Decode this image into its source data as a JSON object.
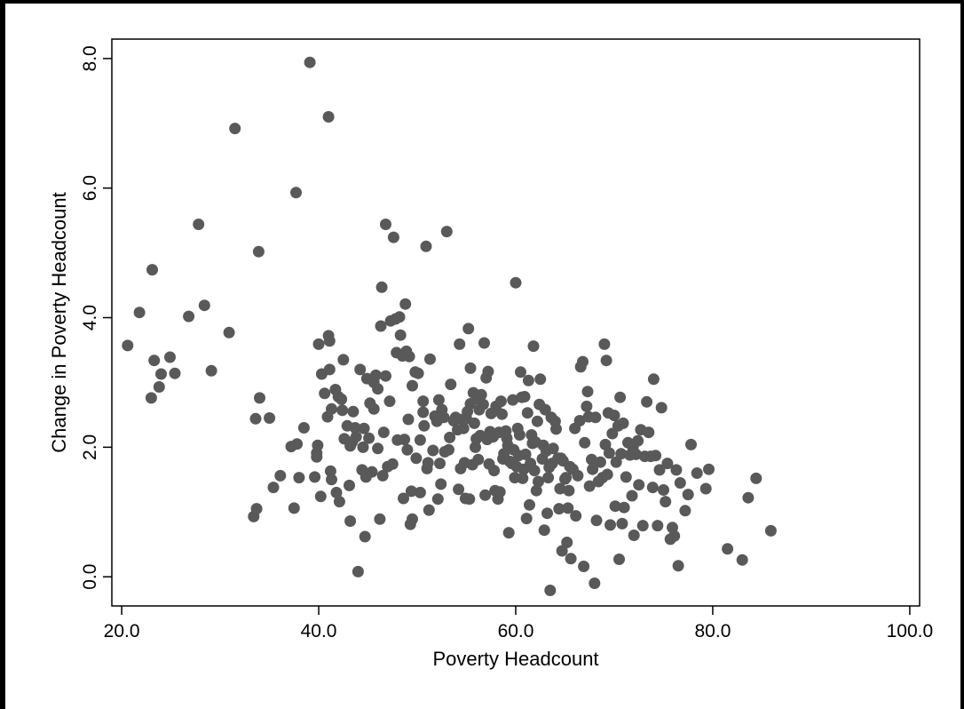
{
  "caption": "",
  "chart_data": {
    "type": "scatter",
    "title": "",
    "xlabel": "Poverty Headcount",
    "ylabel": "Change in Poverty Headcount",
    "xlim": [
      19.0,
      101.0
    ],
    "ylim": [
      -0.45,
      8.3
    ],
    "x_ticks": [
      20.0,
      40.0,
      60.0,
      80.0,
      100.0
    ],
    "x_tick_labels": [
      "20.0",
      "40.0",
      "60.0",
      "80.0",
      "100.0"
    ],
    "y_ticks": [
      0.0,
      2.0,
      4.0,
      6.0,
      8.0
    ],
    "y_tick_labels": [
      "0.0",
      "2.0",
      "4.0",
      "6.0",
      "8.0"
    ],
    "grid": false,
    "legend": "none",
    "marker_color": "#595959",
    "points": [
      [
        20.6,
        3.57
      ],
      [
        21.8,
        4.08
      ],
      [
        23.0,
        2.76
      ],
      [
        23.1,
        4.74
      ],
      [
        23.3,
        3.34
      ],
      [
        23.8,
        2.93
      ],
      [
        24.0,
        3.13
      ],
      [
        24.9,
        3.39
      ],
      [
        25.4,
        3.14
      ],
      [
        26.8,
        4.02
      ],
      [
        27.8,
        5.44
      ],
      [
        28.4,
        4.19
      ],
      [
        29.1,
        3.18
      ],
      [
        30.9,
        3.77
      ],
      [
        31.5,
        6.92
      ],
      [
        33.4,
        0.93
      ],
      [
        33.6,
        2.44
      ],
      [
        33.7,
        1.05
      ],
      [
        33.9,
        5.02
      ],
      [
        34.0,
        2.76
      ],
      [
        35.0,
        2.45
      ],
      [
        35.4,
        1.38
      ],
      [
        36.1,
        1.56
      ],
      [
        37.2,
        2.01
      ],
      [
        37.5,
        1.06
      ],
      [
        37.7,
        5.93
      ],
      [
        37.8,
        2.05
      ],
      [
        38.0,
        1.53
      ],
      [
        38.5,
        2.3
      ],
      [
        39.1,
        7.94
      ],
      [
        39.6,
        1.54
      ],
      [
        39.8,
        1.85
      ],
      [
        39.8,
        1.91
      ],
      [
        39.9,
        2.03
      ],
      [
        40.0,
        3.59
      ],
      [
        40.2,
        1.24
      ],
      [
        40.3,
        3.13
      ],
      [
        40.6,
        2.83
      ],
      [
        40.9,
        2.47
      ],
      [
        41.0,
        3.72
      ],
      [
        41.0,
        7.1
      ],
      [
        41.1,
        3.64
      ],
      [
        41.1,
        3.2
      ],
      [
        41.2,
        1.63
      ],
      [
        41.3,
        1.5
      ],
      [
        41.3,
        2.59
      ],
      [
        41.7,
        2.89
      ],
      [
        41.8,
        1.3
      ],
      [
        42.0,
        2.78
      ],
      [
        42.1,
        1.16
      ],
      [
        42.3,
        2.74
      ],
      [
        42.4,
        2.57
      ],
      [
        42.5,
        3.35
      ],
      [
        42.6,
        2.13
      ],
      [
        42.9,
        2.33
      ],
      [
        43.1,
        1.41
      ],
      [
        43.2,
        0.86
      ],
      [
        43.2,
        2.02
      ],
      [
        43.4,
        2.08
      ],
      [
        43.5,
        2.55
      ],
      [
        43.7,
        2.3
      ],
      [
        43.8,
        2.16
      ],
      [
        44.0,
        0.08
      ],
      [
        44.2,
        3.2
      ],
      [
        44.4,
        1.65
      ],
      [
        44.5,
        2.0
      ],
      [
        44.6,
        2.29
      ],
      [
        44.7,
        0.62
      ],
      [
        44.8,
        1.54
      ],
      [
        44.9,
        3.06
      ],
      [
        45.1,
        2.14
      ],
      [
        45.2,
        2.68
      ],
      [
        45.4,
        1.62
      ],
      [
        45.6,
        2.59
      ],
      [
        45.6,
        3.0
      ],
      [
        45.8,
        3.11
      ],
      [
        46.0,
        2.9
      ],
      [
        46.0,
        1.98
      ],
      [
        46.2,
        0.89
      ],
      [
        46.3,
        3.87
      ],
      [
        46.4,
        4.47
      ],
      [
        46.5,
        1.56
      ],
      [
        46.6,
        2.23
      ],
      [
        46.8,
        5.44
      ],
      [
        46.8,
        3.1
      ],
      [
        47.0,
        1.7
      ],
      [
        47.2,
        2.71
      ],
      [
        47.3,
        3.95
      ],
      [
        47.5,
        1.74
      ],
      [
        47.6,
        5.24
      ],
      [
        47.8,
        3.98
      ],
      [
        47.9,
        3.46
      ],
      [
        48.0,
        2.11
      ],
      [
        48.2,
        4.01
      ],
      [
        48.3,
        3.73
      ],
      [
        48.5,
        3.41
      ],
      [
        48.6,
        1.21
      ],
      [
        48.7,
        2.12
      ],
      [
        48.8,
        4.21
      ],
      [
        48.9,
        3.48
      ],
      [
        49.0,
        1.96
      ],
      [
        49.1,
        2.43
      ],
      [
        49.2,
        3.4
      ],
      [
        49.3,
        0.81
      ],
      [
        49.4,
        1.32
      ],
      [
        49.5,
        0.89
      ],
      [
        49.5,
        2.95
      ],
      [
        49.8,
        3.16
      ],
      [
        49.9,
        1.83
      ],
      [
        50.1,
        3.14
      ],
      [
        50.3,
        2.11
      ],
      [
        50.3,
        1.3
      ],
      [
        50.6,
        2.71
      ],
      [
        50.6,
        2.54
      ],
      [
        50.7,
        2.33
      ],
      [
        50.9,
        5.1
      ],
      [
        51.0,
        1.67
      ],
      [
        51.1,
        1.76
      ],
      [
        51.2,
        1.03
      ],
      [
        51.3,
        3.36
      ],
      [
        51.6,
        1.95
      ],
      [
        51.8,
        2.48
      ],
      [
        52.0,
        2.4
      ],
      [
        52.1,
        1.2
      ],
      [
        52.2,
        2.73
      ],
      [
        52.3,
        1.75
      ],
      [
        52.4,
        1.43
      ],
      [
        52.5,
        2.58
      ],
      [
        52.7,
        2.46
      ],
      [
        52.8,
        1.93
      ],
      [
        53.0,
        5.33
      ],
      [
        53.2,
        1.96
      ],
      [
        53.3,
        2.15
      ],
      [
        53.4,
        2.97
      ],
      [
        53.7,
        2.41
      ],
      [
        53.9,
        2.46
      ],
      [
        54.1,
        2.27
      ],
      [
        54.2,
        1.35
      ],
      [
        54.3,
        3.59
      ],
      [
        54.4,
        1.67
      ],
      [
        54.6,
        2.43
      ],
      [
        54.7,
        2.29
      ],
      [
        54.8,
        1.76
      ],
      [
        54.9,
        1.21
      ],
      [
        55.0,
        2.44
      ],
      [
        55.1,
        2.55
      ],
      [
        55.2,
        3.83
      ],
      [
        55.3,
        1.2
      ],
      [
        55.4,
        2.67
      ],
      [
        55.4,
        3.22
      ],
      [
        55.6,
        1.73
      ],
      [
        55.7,
        2.84
      ],
      [
        55.8,
        2.37
      ],
      [
        55.9,
        2.0
      ],
      [
        56.0,
        2.13
      ],
      [
        56.1,
        2.75
      ],
      [
        56.2,
        1.81
      ],
      [
        56.3,
        2.58
      ],
      [
        56.4,
        2.18
      ],
      [
        56.5,
        2.81
      ],
      [
        56.7,
        2.66
      ],
      [
        56.8,
        3.61
      ],
      [
        56.9,
        1.26
      ],
      [
        57.0,
        3.07
      ],
      [
        57.1,
        2.12
      ],
      [
        57.2,
        3.17
      ],
      [
        57.3,
        1.74
      ],
      [
        57.4,
        2.24
      ],
      [
        57.5,
        2.52
      ],
      [
        57.7,
        2.16
      ],
      [
        57.8,
        1.64
      ],
      [
        57.9,
        1.33
      ],
      [
        58.0,
        2.63
      ],
      [
        58.2,
        1.2
      ],
      [
        58.3,
        2.23
      ],
      [
        58.4,
        1.31
      ],
      [
        58.5,
        2.71
      ],
      [
        58.6,
        2.51
      ],
      [
        58.7,
        1.82
      ],
      [
        58.8,
        1.9
      ],
      [
        59.0,
        2.25
      ],
      [
        59.1,
        2.14
      ],
      [
        59.2,
        2.03
      ],
      [
        59.3,
        0.68
      ],
      [
        59.4,
        1.78
      ],
      [
        59.6,
        1.75
      ],
      [
        59.7,
        2.73
      ],
      [
        59.8,
        1.96
      ],
      [
        59.9,
        1.53
      ],
      [
        60.0,
        4.54
      ],
      [
        60.1,
        1.7
      ],
      [
        60.2,
        2.29
      ],
      [
        60.3,
        1.87
      ],
      [
        60.4,
        2.19
      ],
      [
        60.5,
        3.16
      ],
      [
        60.6,
        2.77
      ],
      [
        60.7,
        1.52
      ],
      [
        60.8,
        1.66
      ],
      [
        60.9,
        2.78
      ],
      [
        61.0,
        1.89
      ],
      [
        61.1,
        0.9
      ],
      [
        61.2,
        2.53
      ],
      [
        61.3,
        3.03
      ],
      [
        61.4,
        1.11
      ],
      [
        61.5,
        1.75
      ],
      [
        61.6,
        2.19
      ],
      [
        61.7,
        2.06
      ],
      [
        61.8,
        3.56
      ],
      [
        61.9,
        1.64
      ],
      [
        62.0,
        2.08
      ],
      [
        62.1,
        1.33
      ],
      [
        62.2,
        2.4
      ],
      [
        62.3,
        1.47
      ],
      [
        62.4,
        2.66
      ],
      [
        62.5,
        3.05
      ],
      [
        62.7,
        1.82
      ],
      [
        62.8,
        2.03
      ],
      [
        62.9,
        0.72
      ],
      [
        63.0,
        2.58
      ],
      [
        63.1,
        1.94
      ],
      [
        63.2,
        0.98
      ],
      [
        63.3,
        1.53
      ],
      [
        63.4,
        1.69
      ],
      [
        63.5,
        -0.21
      ],
      [
        63.6,
        2.46
      ],
      [
        63.7,
        1.75
      ],
      [
        63.8,
        1.98
      ],
      [
        64.0,
        2.4
      ],
      [
        64.1,
        2.28
      ],
      [
        64.3,
        1.83
      ],
      [
        64.4,
        1.05
      ],
      [
        64.5,
        1.36
      ],
      [
        64.6,
        1.83
      ],
      [
        64.7,
        0.4
      ],
      [
        64.8,
        1.79
      ],
      [
        65.0,
        1.51
      ],
      [
        65.1,
        1.53
      ],
      [
        65.2,
        0.53
      ],
      [
        65.3,
        1.06
      ],
      [
        65.4,
        1.33
      ],
      [
        65.5,
        1.7
      ],
      [
        65.6,
        0.28
      ],
      [
        65.8,
        1.66
      ],
      [
        66.0,
        2.29
      ],
      [
        66.1,
        0.94
      ],
      [
        66.3,
        1.56
      ],
      [
        66.5,
        2.41
      ],
      [
        66.6,
        3.24
      ],
      [
        66.8,
        3.32
      ],
      [
        66.9,
        0.16
      ],
      [
        67.0,
        2.07
      ],
      [
        67.2,
        2.63
      ],
      [
        67.3,
        2.86
      ],
      [
        67.4,
        2.47
      ],
      [
        67.5,
        1.4
      ],
      [
        67.7,
        1.81
      ],
      [
        67.8,
        1.66
      ],
      [
        68.0,
        -0.1
      ],
      [
        68.1,
        2.46
      ],
      [
        68.2,
        0.87
      ],
      [
        68.4,
        1.47
      ],
      [
        68.6,
        1.77
      ],
      [
        68.8,
        1.53
      ],
      [
        69.0,
        3.59
      ],
      [
        69.1,
        2.04
      ],
      [
        69.2,
        3.34
      ],
      [
        69.3,
        1.58
      ],
      [
        69.4,
        2.53
      ],
      [
        69.5,
        1.91
      ],
      [
        69.6,
        0.8
      ],
      [
        69.8,
        2.21
      ],
      [
        70.0,
        2.49
      ],
      [
        70.1,
        1.09
      ],
      [
        70.2,
        1.77
      ],
      [
        70.4,
        2.33
      ],
      [
        70.5,
        0.27
      ],
      [
        70.6,
        2.77
      ],
      [
        70.7,
        1.9
      ],
      [
        70.8,
        0.82
      ],
      [
        70.9,
        2.37
      ],
      [
        71.0,
        1.07
      ],
      [
        71.2,
        1.54
      ],
      [
        71.4,
        2.07
      ],
      [
        71.6,
        1.88
      ],
      [
        71.8,
        1.25
      ],
      [
        71.9,
        2.0
      ],
      [
        72.0,
        0.64
      ],
      [
        72.2,
        1.89
      ],
      [
        72.4,
        2.1
      ],
      [
        72.5,
        1.42
      ],
      [
        72.7,
        2.27
      ],
      [
        72.9,
        0.79
      ],
      [
        73.1,
        1.86
      ],
      [
        73.3,
        2.7
      ],
      [
        73.5,
        2.23
      ],
      [
        73.7,
        1.86
      ],
      [
        73.9,
        1.38
      ],
      [
        74.0,
        3.05
      ],
      [
        74.2,
        1.87
      ],
      [
        74.4,
        0.79
      ],
      [
        74.6,
        1.65
      ],
      [
        74.8,
        2.61
      ],
      [
        75.0,
        1.34
      ],
      [
        75.2,
        1.16
      ],
      [
        75.4,
        1.75
      ],
      [
        75.7,
        0.58
      ],
      [
        75.9,
        0.76
      ],
      [
        76.1,
        0.63
      ],
      [
        76.3,
        1.65
      ],
      [
        76.5,
        0.17
      ],
      [
        76.7,
        1.45
      ],
      [
        77.2,
        1.02
      ],
      [
        77.5,
        1.27
      ],
      [
        77.8,
        2.04
      ],
      [
        78.4,
        1.6
      ],
      [
        79.3,
        1.36
      ],
      [
        79.6,
        1.66
      ],
      [
        81.5,
        0.43
      ],
      [
        83.0,
        0.26
      ],
      [
        83.6,
        1.22
      ],
      [
        84.4,
        1.52
      ],
      [
        85.9,
        0.71
      ]
    ]
  }
}
